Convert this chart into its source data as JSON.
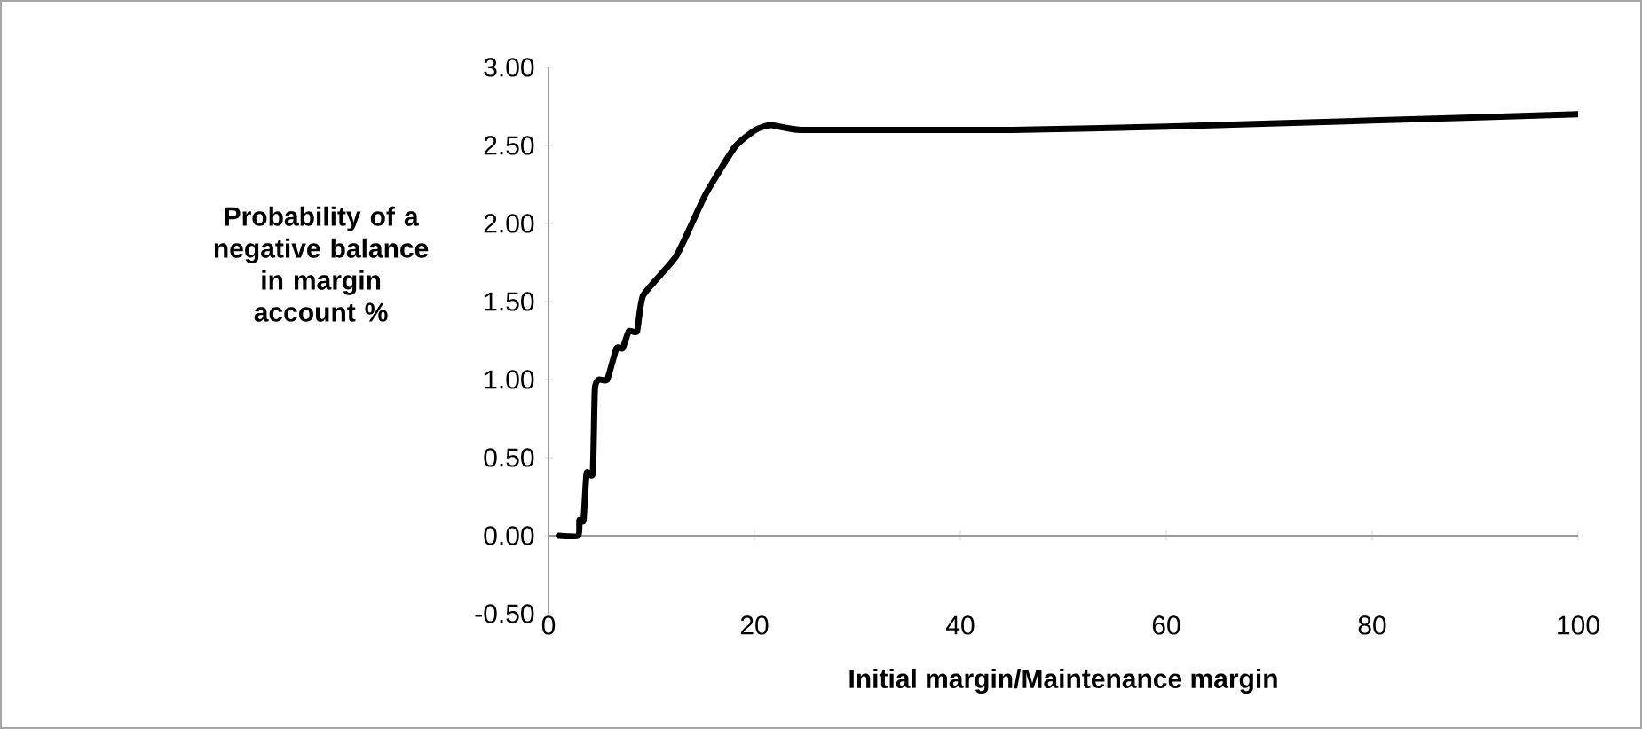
{
  "chart_data": {
    "type": "line",
    "xlabel": "Initial margin/Maintenance margin",
    "ylabel": "Probability of a negative balance in margin account %",
    "x": [
      1,
      2.9,
      3.0,
      3.4,
      3.7,
      4.3,
      4.5,
      4.9,
      5.7,
      6.6,
      7.2,
      7.8,
      8.6,
      9.2,
      12.4,
      15.2,
      18.1,
      20.1,
      21.6,
      24.5,
      35,
      45,
      60,
      80,
      100
    ],
    "series": [
      {
        "color": "#000000",
        "values": [
          0,
          0,
          0.1,
          0.1,
          0.4,
          0.4,
          0.94,
          1.0,
          1.0,
          1.2,
          1.2,
          1.31,
          1.31,
          1.54,
          1.79,
          2.18,
          2.49,
          2.6,
          2.63,
          2.6,
          2.6,
          2.6,
          2.62,
          2.66,
          2.7
        ]
      }
    ],
    "xlim": [
      0,
      100
    ],
    "ylim": [
      -0.5,
      3
    ],
    "xticks": [
      0,
      20,
      40,
      60,
      80,
      100
    ],
    "yticks": [
      {
        "value": -0.5,
        "label": "-0.50"
      },
      {
        "value": 0,
        "label": "0.00"
      },
      {
        "value": 0.5,
        "label": "0.50"
      },
      {
        "value": 1,
        "label": "1.00"
      },
      {
        "value": 1.5,
        "label": "1.50"
      },
      {
        "value": 2,
        "label": "2.00"
      },
      {
        "value": 2.5,
        "label": "2.50"
      },
      {
        "value": 3,
        "label": "3.00"
      }
    ],
    "marker": "none",
    "line_style": "solid"
  }
}
